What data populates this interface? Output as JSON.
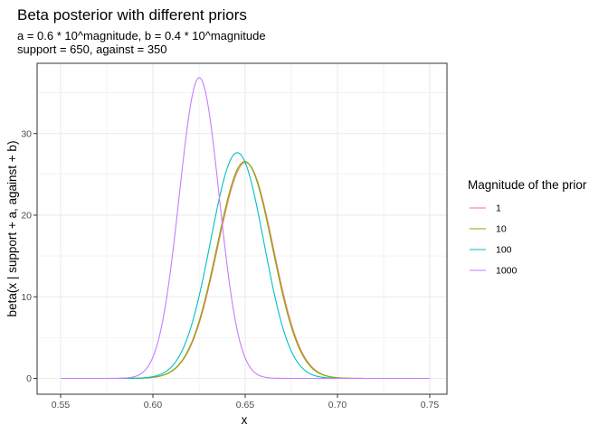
{
  "chart_data": {
    "type": "line",
    "title": "Beta posterior with different priors",
    "subtitle_lines": [
      "a = 0.6 * 10^magnitude, b = 0.4 * 10^magnitude",
      "support = 650, against = 350"
    ],
    "xlabel": "x",
    "ylabel": "beta(x | support + a, against + b)",
    "xlim": [
      0.55,
      0.75
    ],
    "ylim": [
      0,
      38
    ],
    "x_ticks": [
      "0.55",
      "0.60",
      "0.65",
      "0.70",
      "0.75"
    ],
    "y_ticks": [
      "0",
      "10",
      "20",
      "30"
    ],
    "grid": true,
    "legend": {
      "title": "Magnitude of the prior",
      "position": "right"
    },
    "x_range": [
      0.55,
      0.75
    ],
    "series": [
      {
        "name": "1",
        "color": "#F8766D",
        "distribution": "beta",
        "alpha": 650.6,
        "beta": 350.4
      },
      {
        "name": "10",
        "color": "#7CAE00",
        "distribution": "beta",
        "alpha": 656,
        "beta": 354
      },
      {
        "name": "100",
        "color": "#00BFC4",
        "distribution": "beta",
        "alpha": 710,
        "beta": 390
      },
      {
        "name": "1000",
        "color": "#C77CFF",
        "distribution": "beta",
        "alpha": 1250,
        "beta": 750
      }
    ]
  }
}
